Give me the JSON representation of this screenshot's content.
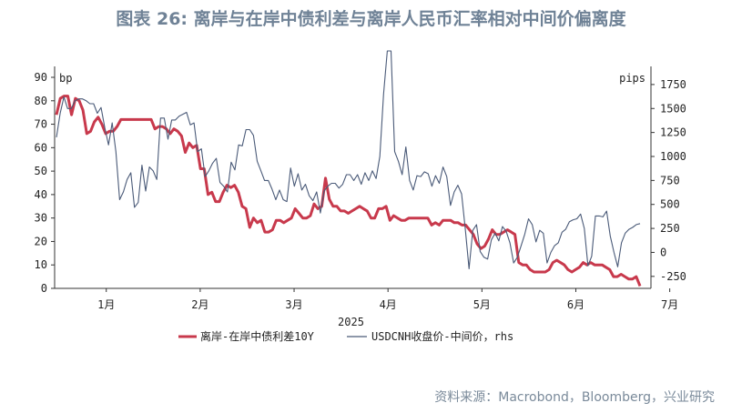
{
  "title": "图表 26: 离岸与在岸中债利差与离岸人民币汇率相对中间价偏离度",
  "source": "资料来源：Macrobond，Bloomberg，兴业研究",
  "chart_data": {
    "type": "line",
    "xlabel": "2025",
    "left_axis": {
      "unit": "bp",
      "ylim": [
        0,
        90
      ],
      "ticks": [
        "0",
        "10",
        "20",
        "30",
        "40",
        "50",
        "60",
        "70",
        "80",
        "90"
      ]
    },
    "right_axis": {
      "unit": "pips",
      "ylim": [
        -375,
        1825
      ],
      "ticks": [
        "-250",
        "0",
        "250",
        "500",
        "750",
        "1000",
        "1250",
        "1500",
        "1750"
      ]
    },
    "month_ticks": [
      "1月",
      "2月",
      "3月",
      "4月",
      "5月",
      "6月",
      "7月"
    ],
    "legend_placement": "bottom",
    "series": [
      {
        "name": "离岸-在岸中债利差10Y",
        "axis": "left",
        "color": "#c8394c",
        "values": [
          74,
          81,
          82,
          82,
          74,
          81,
          80,
          76,
          66,
          67,
          71,
          73,
          70,
          66,
          67,
          67,
          69,
          72,
          72,
          72,
          72,
          72,
          72,
          72,
          72,
          72,
          68,
          69,
          69,
          68,
          66,
          68,
          67,
          65,
          58,
          62,
          60,
          61,
          51,
          51,
          40,
          41,
          37,
          37,
          41,
          44,
          43,
          44,
          41,
          35,
          34,
          26,
          30,
          28,
          29,
          24,
          24,
          25,
          29,
          29,
          28,
          29,
          30,
          34,
          32,
          30,
          30,
          31,
          36,
          34,
          35,
          47,
          38,
          35,
          35,
          33,
          33,
          32,
          33,
          34,
          35,
          34,
          33,
          30,
          30,
          34,
          34,
          35,
          29,
          31,
          30,
          29,
          29,
          30,
          30,
          30,
          30,
          30,
          30,
          27,
          28,
          27,
          29,
          29,
          29,
          28,
          28,
          27,
          27,
          25,
          23,
          19,
          17,
          18,
          21,
          25,
          23,
          23,
          24,
          25,
          24,
          23,
          11,
          10,
          10,
          8,
          7,
          7,
          7,
          7,
          8,
          11,
          12,
          11,
          10,
          8,
          7,
          8,
          9,
          11,
          10,
          11,
          10,
          10,
          10,
          9,
          8,
          5,
          5,
          6,
          5,
          4,
          4,
          5,
          1
        ]
      },
      {
        "name": "USDCNH收盘价-中间价，rhs",
        "axis": "right",
        "color": "#4a5a78",
        "values": [
          1200,
          1450,
          1620,
          1500,
          1500,
          1580,
          1600,
          1600,
          1580,
          1550,
          1550,
          1450,
          1510,
          1300,
          1120,
          1350,
          1050,
          550,
          630,
          760,
          830,
          470,
          520,
          910,
          640,
          890,
          850,
          760,
          1400,
          1400,
          1180,
          1380,
          1380,
          1420,
          1440,
          1460,
          1330,
          1350,
          1050,
          1080,
          790,
          850,
          930,
          980,
          730,
          690,
          630,
          940,
          860,
          1120,
          1110,
          1280,
          1280,
          1220,
          950,
          850,
          750,
          750,
          660,
          550,
          650,
          550,
          530,
          880,
          690,
          820,
          650,
          710,
          590,
          540,
          630,
          410,
          640,
          690,
          720,
          720,
          670,
          710,
          810,
          810,
          750,
          810,
          710,
          830,
          750,
          850,
          770,
          1000,
          1650,
          2100,
          2100,
          1050,
          950,
          810,
          1100,
          750,
          650,
          800,
          790,
          840,
          820,
          690,
          800,
          720,
          890,
          790,
          490,
          630,
          700,
          610,
          240,
          -170,
          230,
          290,
          10,
          -50,
          -70,
          130,
          200,
          120,
          270,
          220,
          100,
          -110,
          -50,
          70,
          190,
          350,
          290,
          110,
          230,
          200,
          -110,
          0,
          70,
          100,
          210,
          240,
          320,
          340,
          350,
          400,
          250,
          -140,
          -40,
          380,
          380,
          370,
          430,
          170,
          0,
          -150,
          100,
          200,
          240,
          260,
          290,
          300
        ]
      }
    ]
  }
}
